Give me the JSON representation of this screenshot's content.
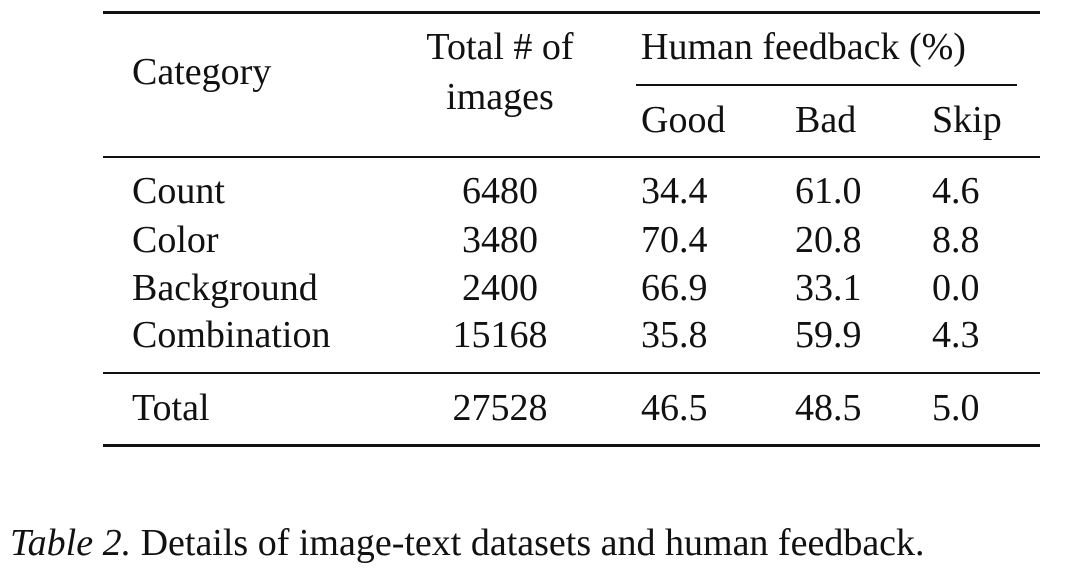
{
  "table": {
    "header": {
      "category": "Category",
      "total_line1": "Total # of",
      "total_line2": "images",
      "feedback": "Human feedback (%)",
      "subheaders": [
        "Good",
        "Bad",
        "Skip"
      ]
    },
    "rows": [
      [
        "Count",
        "6480",
        "34.4",
        "61.0",
        "4.6"
      ],
      [
        "Color",
        "3480",
        "70.4",
        "20.8",
        "8.8"
      ],
      [
        "Background",
        "2400",
        "66.9",
        "33.1",
        "0.0"
      ],
      [
        "Combination",
        "15168",
        "35.8",
        "59.9",
        "4.3"
      ]
    ],
    "total_row": [
      "Total",
      "27528",
      "46.5",
      "48.5",
      "5.0"
    ]
  },
  "caption": {
    "label": "Table 2.",
    "text": "Details of image-text datasets and human feedback."
  }
}
